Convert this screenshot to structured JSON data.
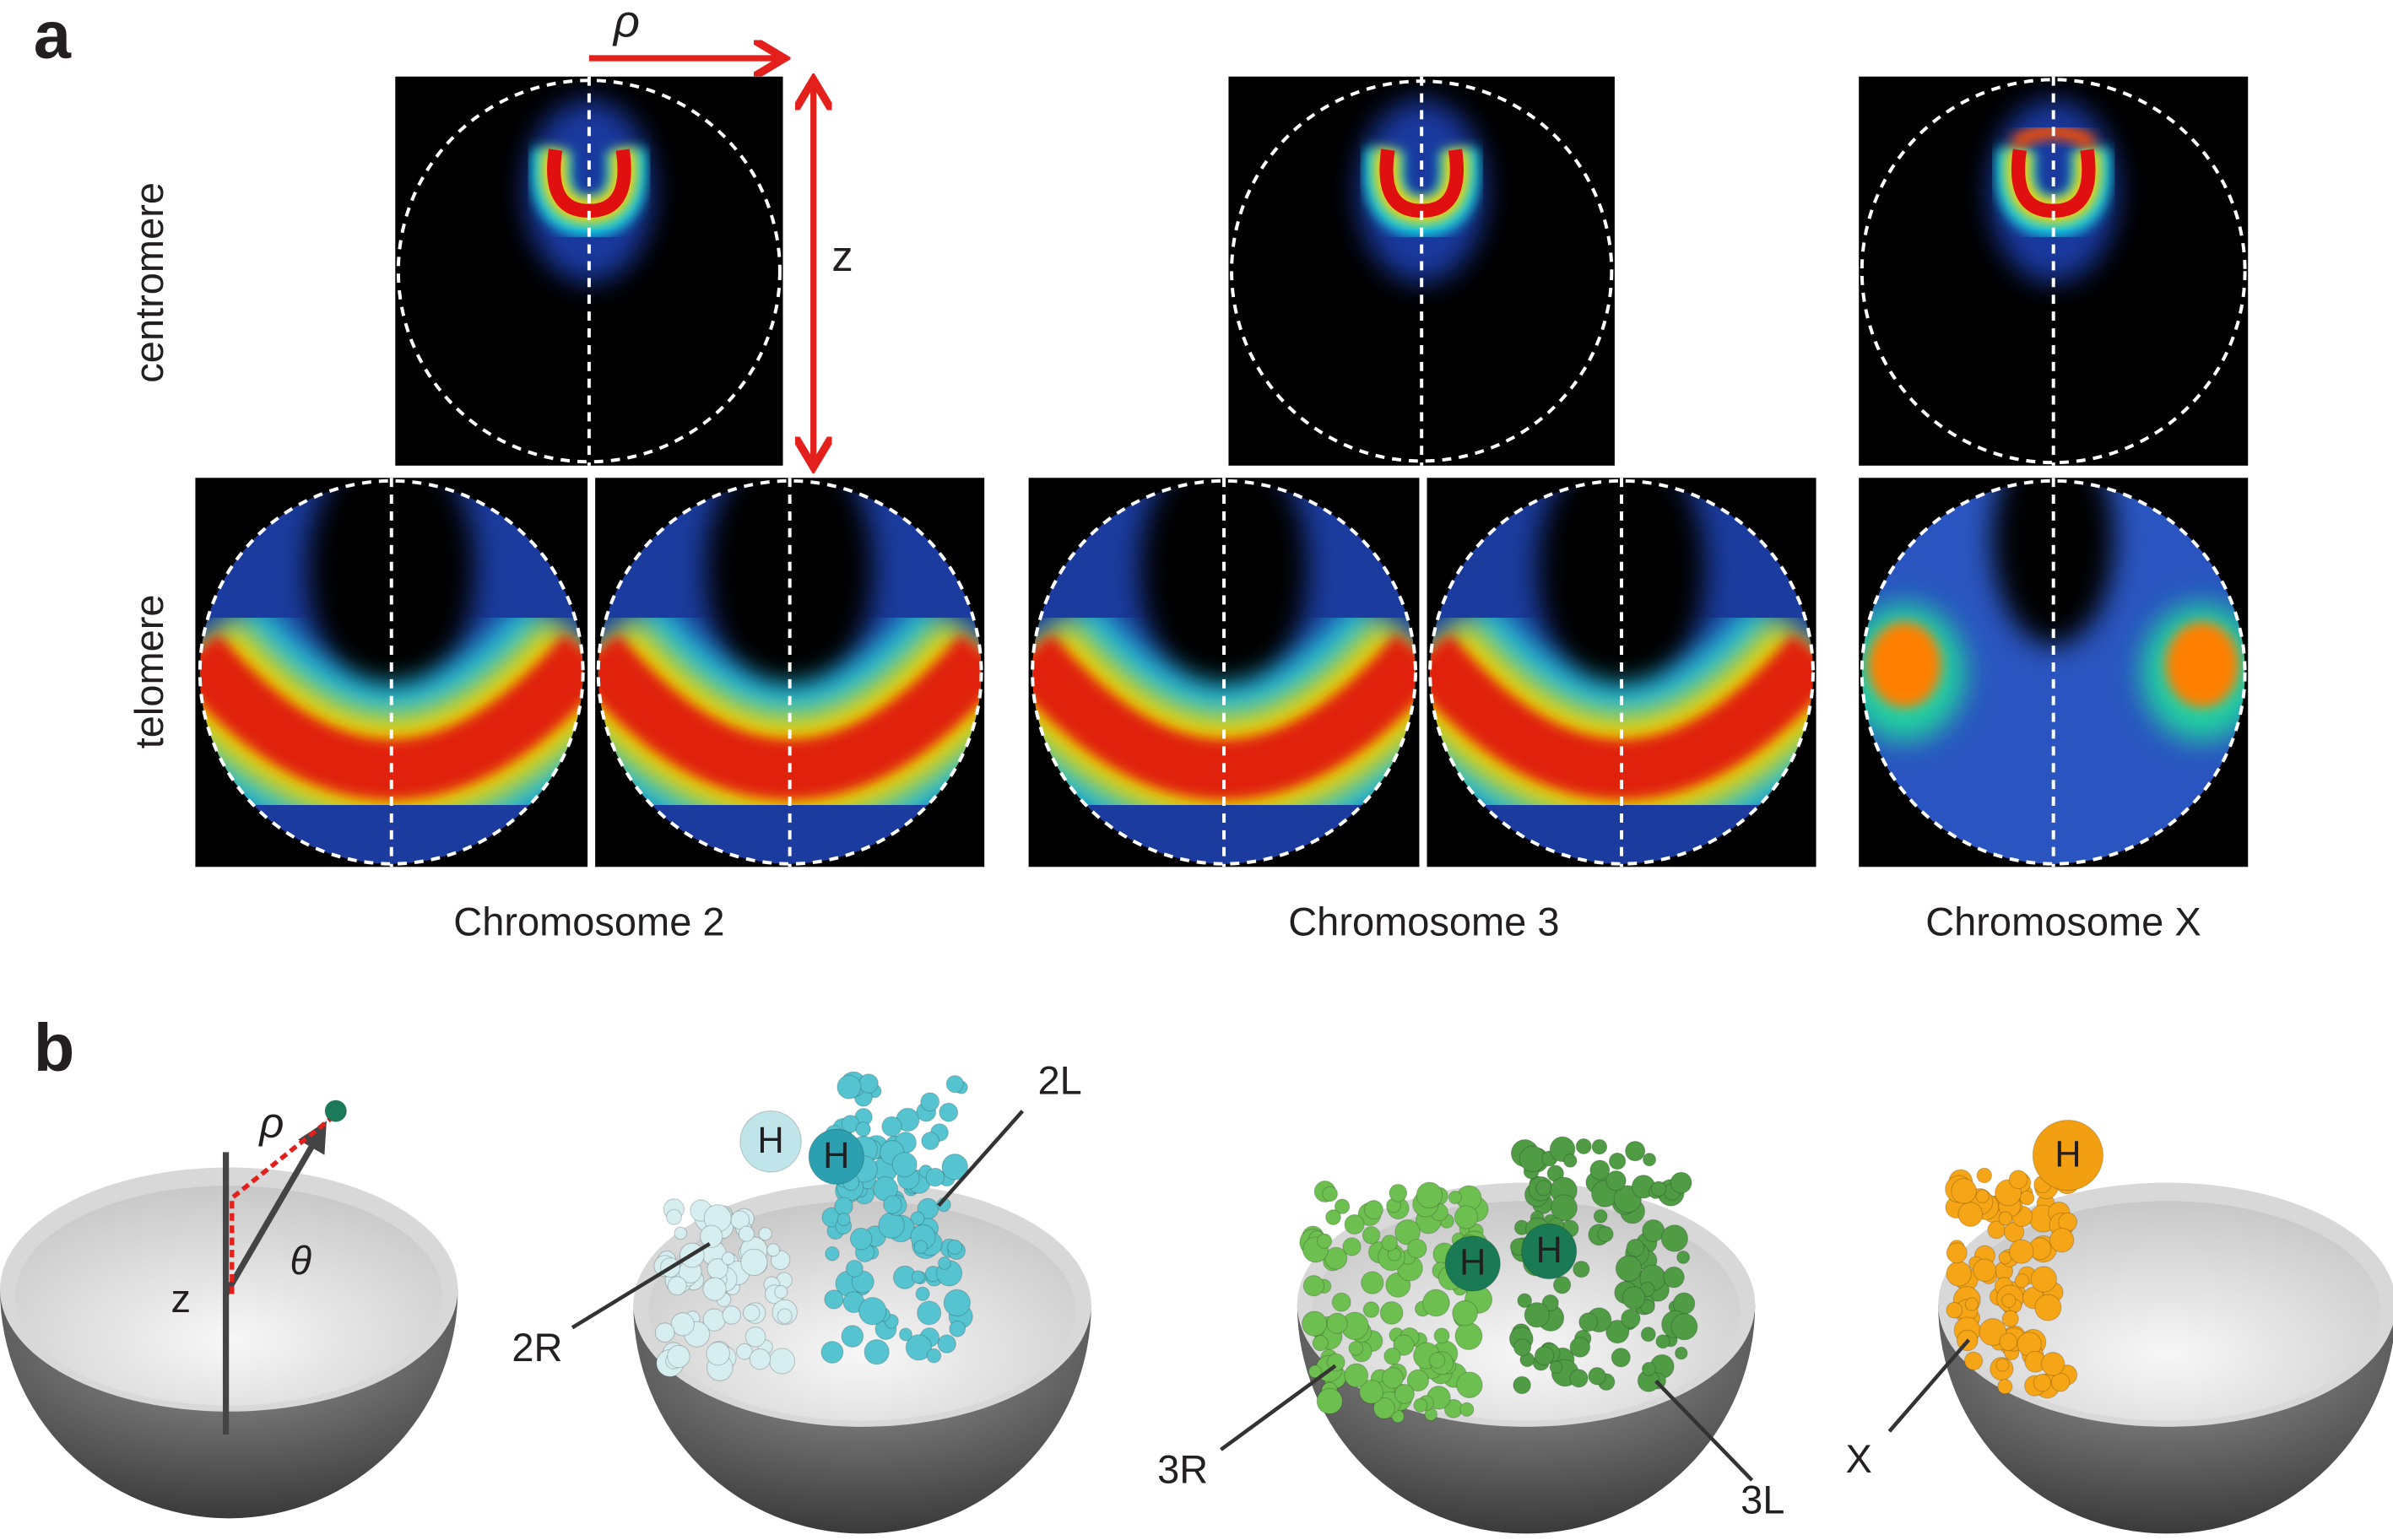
{
  "panel_a": {
    "label": "a",
    "axis_labels": {
      "rho": "ρ",
      "z": "z"
    },
    "row_labels": [
      "centromere",
      "telomere"
    ],
    "columns": [
      "Chromosome 2",
      "Chromosome 3",
      "Chromosome X"
    ]
  },
  "panel_b": {
    "label": "b",
    "axis_labels": {
      "rho": "ρ",
      "z": "z",
      "theta": "θ"
    },
    "models": [
      {
        "hubs": [],
        "arms": []
      },
      {
        "hubs": [
          "H",
          "H"
        ],
        "arms": [
          "2R",
          "2L"
        ]
      },
      {
        "hubs": [
          "H",
          "H"
        ],
        "arms": [
          "3R",
          "3L"
        ]
      },
      {
        "hubs": [
          "H"
        ],
        "arms": [
          "X"
        ]
      }
    ]
  }
}
